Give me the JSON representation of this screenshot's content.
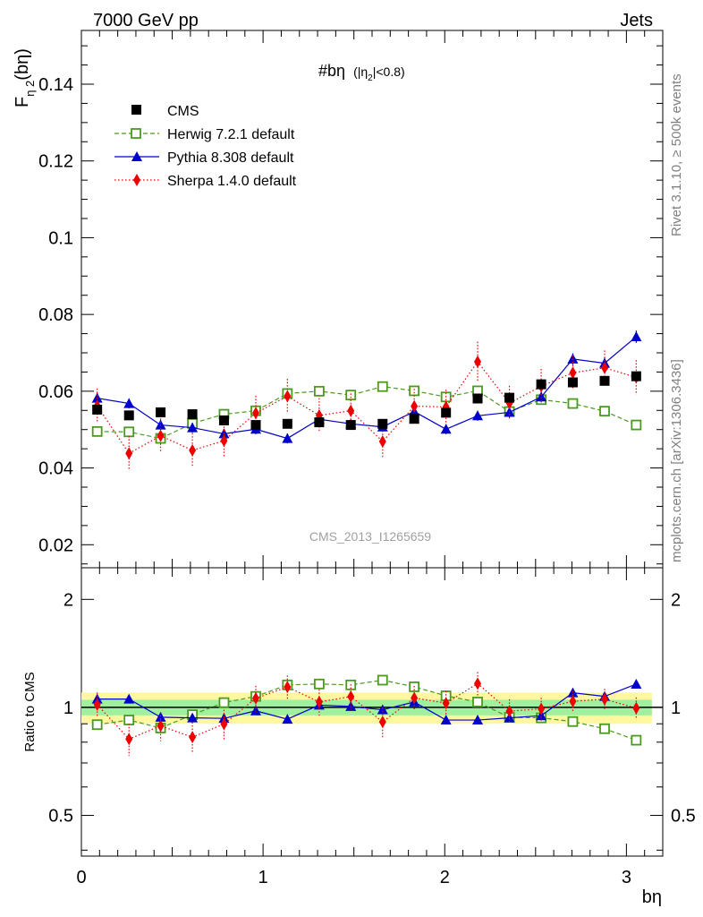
{
  "header": {
    "left": "7000 GeV pp",
    "right": "Jets"
  },
  "plot_title": {
    "main": "#bη",
    "sub": "(|η",
    "sub_index": "2",
    "sub_end": "|<0.8)"
  },
  "watermark": "CMS_2013_I1265659",
  "side_labels": {
    "rivet": "Rivet 3.1.10, ≥ 500k events",
    "mcplots": "mcplots.cern.ch [arXiv:1306.3436]"
  },
  "colors": {
    "cms": "#000000",
    "herwig": "#4a9a1e",
    "pythia": "#0000cc",
    "sherpa": "#ee0000",
    "band_outer": "#fff8a0",
    "band_inner": "#a0f0a0",
    "band_line": "#2e8b57"
  },
  "chart_data": [
    {
      "type": "scatter",
      "title": "#bη (|η2|<0.8)",
      "ylabel": "F",
      "ylabel_sub": "η 2",
      "ylabel_tail": "(bη)",
      "xlim": [
        0,
        3.2
      ],
      "ylim": [
        0.014,
        0.154
      ],
      "y_ticks": [
        0.02,
        0.04,
        0.06,
        0.08,
        0.1,
        0.12,
        0.14
      ],
      "y_tick_labels": [
        "0.02",
        "0.04",
        "0.06",
        "0.08",
        "0.1",
        "0.12",
        "0.14"
      ],
      "x": [
        0.087,
        0.262,
        0.436,
        0.611,
        0.785,
        0.96,
        1.134,
        1.309,
        1.483,
        1.658,
        1.832,
        2.007,
        2.181,
        2.356,
        2.531,
        2.705,
        2.88,
        3.054
      ],
      "series": [
        {
          "name": "CMS",
          "key": "cms",
          "marker": "square",
          "line": "none",
          "values": [
            0.0552,
            0.0537,
            0.0545,
            0.054,
            0.0524,
            0.0512,
            0.0515,
            0.0519,
            0.0512,
            0.0515,
            0.0528,
            0.0544,
            0.0581,
            0.0583,
            0.0618,
            0.0623,
            0.0627,
            0.0639
          ],
          "errors": [
            0.0007,
            0.0007,
            0.0006,
            0.0006,
            0.0006,
            0.0006,
            0.0006,
            0.0006,
            0.0006,
            0.0006,
            0.0006,
            0.0007,
            0.0007,
            0.0007,
            0.0007,
            0.0007,
            0.0007,
            0.0008
          ]
        },
        {
          "name": "Herwig 7.2.1 default",
          "key": "herwig",
          "marker": "open-square",
          "line": "dashed",
          "values": [
            0.0495,
            0.0494,
            0.0477,
            0.0516,
            0.054,
            0.0549,
            0.0594,
            0.06,
            0.059,
            0.0612,
            0.0601,
            0.0585,
            0.0601,
            0.0547,
            0.0578,
            0.0568,
            0.0548,
            0.0512
          ],
          "errors": [
            0.0008,
            0.0008,
            0.0008,
            0.0008,
            0.0008,
            0.0008,
            0.0009,
            0.0009,
            0.0009,
            0.0009,
            0.0009,
            0.0009,
            0.0009,
            0.0009,
            0.0009,
            0.0009,
            0.0009,
            0.0008
          ]
        },
        {
          "name": "Pythia 8.308 default",
          "key": "pythia",
          "marker": "triangle",
          "line": "solid",
          "values": [
            0.0582,
            0.0568,
            0.0512,
            0.0505,
            0.0489,
            0.0501,
            0.0477,
            0.0527,
            0.0515,
            0.0507,
            0.0547,
            0.0501,
            0.0536,
            0.0545,
            0.0585,
            0.0684,
            0.0673,
            0.0742
          ],
          "errors": [
            0.0013,
            0.0013,
            0.0013,
            0.0013,
            0.0013,
            0.0013,
            0.0013,
            0.0013,
            0.0013,
            0.0013,
            0.0013,
            0.0013,
            0.0013,
            0.0013,
            0.0014,
            0.0015,
            0.0015,
            0.0016
          ]
        },
        {
          "name": "Sherpa 1.4.0 default",
          "key": "sherpa",
          "marker": "diamond",
          "line": "dotted",
          "values": [
            0.0562,
            0.0438,
            0.0484,
            0.0446,
            0.0471,
            0.0543,
            0.0587,
            0.0537,
            0.0549,
            0.0469,
            0.0561,
            0.0559,
            0.0677,
            0.0569,
            0.0613,
            0.0648,
            0.0661,
            0.0636
          ],
          "errors": [
            0.0045,
            0.0045,
            0.0045,
            0.0045,
            0.0045,
            0.0045,
            0.0045,
            0.0045,
            0.0045,
            0.0045,
            0.0045,
            0.0045,
            0.0052,
            0.0045,
            0.0045,
            0.0045,
            0.0045,
            0.0045
          ]
        }
      ]
    },
    {
      "type": "scatter",
      "title": "",
      "xlabel": "bη",
      "ylabel": "Ratio to CMS",
      "ylog": true,
      "ylim": [
        0.385,
        2.45
      ],
      "y_ticks": [
        0.5,
        1,
        2
      ],
      "y_tick_labels": [
        "0.5",
        "1",
        "2"
      ],
      "xlim": [
        0,
        3.2
      ],
      "x_ticks": [
        0,
        1,
        2,
        3
      ],
      "x_tick_labels": [
        "0",
        "1",
        "2",
        "3"
      ],
      "band_inner": 0.05,
      "band_outer": 0.1,
      "series": [
        {
          "name": "Herwig 7.2.1 default",
          "key": "herwig",
          "values": [
            0.895,
            0.922,
            0.876,
            0.954,
            1.031,
            1.073,
            1.155,
            1.162,
            1.155,
            1.191,
            1.141,
            1.077,
            1.035,
            0.938,
            0.935,
            0.913,
            0.872,
            0.81
          ]
        },
        {
          "name": "Pythia 8.308 default",
          "key": "pythia",
          "values": [
            1.055,
            1.055,
            0.939,
            0.935,
            0.932,
            0.978,
            0.927,
            1.015,
            1.006,
            0.985,
            1.035,
            0.922,
            0.922,
            0.935,
            0.948,
            1.098,
            1.073,
            1.161
          ]
        },
        {
          "name": "Sherpa 1.4.0 default",
          "key": "sherpa",
          "values": [
            1.018,
            0.816,
            0.888,
            0.826,
            0.899,
            1.06,
            1.14,
            1.035,
            1.072,
            0.911,
            1.062,
            1.028,
            1.165,
            0.976,
            0.991,
            1.04,
            1.054,
            0.995
          ]
        }
      ]
    }
  ]
}
